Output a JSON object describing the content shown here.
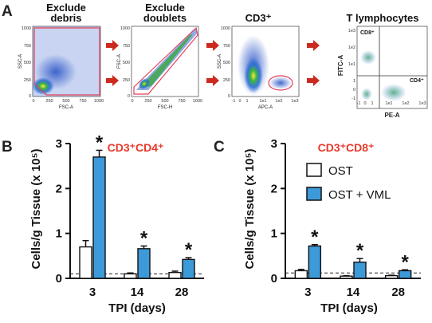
{
  "panels": {
    "a": {
      "letter": "A",
      "plots": [
        {
          "title": "Exclude debris",
          "title_lines": [
            "Exclude",
            "debris"
          ],
          "xlabel": "FSC-A",
          "ylabel": "SSC-A",
          "yticks": [
            "1000",
            "750",
            "500",
            "250",
            "0"
          ],
          "xticks": [
            "0",
            "250",
            "500",
            "750",
            "1000"
          ]
        },
        {
          "title": "Exclude doublets",
          "title_lines": [
            "Exclude",
            "doublets"
          ],
          "xlabel": "FSC-H",
          "ylabel": "FSC-A",
          "yticks": [
            "1000",
            "750",
            "500",
            "250",
            "0"
          ],
          "xticks": [
            "0",
            "250",
            "500",
            "750",
            "1000"
          ]
        },
        {
          "title": "CD3⁺",
          "title_lines": [
            "CD3⁺"
          ],
          "xlabel": "APC-A",
          "ylabel": "SSC-A",
          "yticks": [
            "1000",
            "750",
            "500",
            "250",
            "0"
          ],
          "xticks": [
            "-1",
            "0",
            "1",
            "1e1",
            "1e2",
            "1e3"
          ]
        },
        {
          "title": "T lymphocytes",
          "title_lines": [
            "T lymphocytes"
          ],
          "xlabel": "PE-A",
          "ylabel": "FITC-A",
          "yticks": [
            "1e3",
            "1e2",
            "1e1",
            "1",
            "0",
            "-1"
          ],
          "xticks": [
            "-1",
            "0",
            "1",
            "1e1",
            "1e2",
            "1e3"
          ],
          "quadrant_labels": [
            "CD8⁺",
            "CD4⁺"
          ]
        }
      ],
      "colors": {
        "arrow": "#cc2a1e",
        "gate": "#e0405a",
        "scatter_high": "#2b9b3a",
        "scatter_mid": "#2e6fd0"
      }
    },
    "b": {
      "letter": "B",
      "label": "CD3⁺CD4⁺"
    },
    "c": {
      "letter": "C",
      "label": "CD3⁺CD8⁺"
    },
    "ylabel": "Cells/g Tissue (x 10⁵)",
    "xlabel": "TPI (days)",
    "legend": {
      "ost": "OST",
      "ost_vml": "OST + VML"
    },
    "star": "*",
    "colors": {
      "vml_bar": "#3d9ad9",
      "ost_bar": "#ffffff",
      "title_red": "#e8382b"
    }
  },
  "chart_data": [
    {
      "type": "bar",
      "panel": "B",
      "title": "CD3⁺CD4⁺",
      "xlabel": "TPI (days)",
      "ylabel": "Cells/g Tissue (x 10⁵)",
      "categories": [
        "3",
        "14",
        "28"
      ],
      "yticks": [
        "0",
        "1",
        "2",
        "3"
      ],
      "ylim": [
        0,
        3
      ],
      "baseline": 0.1,
      "series": [
        {
          "name": "OST",
          "values": [
            0.7,
            0.1,
            0.13
          ],
          "errors": [
            0.14,
            0.02,
            0.03
          ]
        },
        {
          "name": "OST + VML",
          "values": [
            2.7,
            0.66,
            0.42
          ],
          "errors": [
            0.15,
            0.06,
            0.04
          ]
        }
      ],
      "significant": [
        true,
        true,
        true
      ]
    },
    {
      "type": "bar",
      "panel": "C",
      "title": "CD3⁺CD8⁺",
      "xlabel": "TPI (days)",
      "ylabel": "Cells/g Tissue (x 10⁵)",
      "categories": [
        "3",
        "14",
        "28"
      ],
      "yticks": [
        "0",
        "1",
        "2",
        "3"
      ],
      "ylim": [
        0,
        3
      ],
      "baseline": 0.12,
      "series": [
        {
          "name": "OST",
          "values": [
            0.17,
            0.05,
            0.06
          ],
          "errors": [
            0.03,
            0.01,
            0.01
          ]
        },
        {
          "name": "OST + VML",
          "values": [
            0.72,
            0.36,
            0.17
          ],
          "errors": [
            0.03,
            0.08,
            0.02
          ]
        }
      ],
      "significant": [
        true,
        true,
        true
      ]
    }
  ]
}
